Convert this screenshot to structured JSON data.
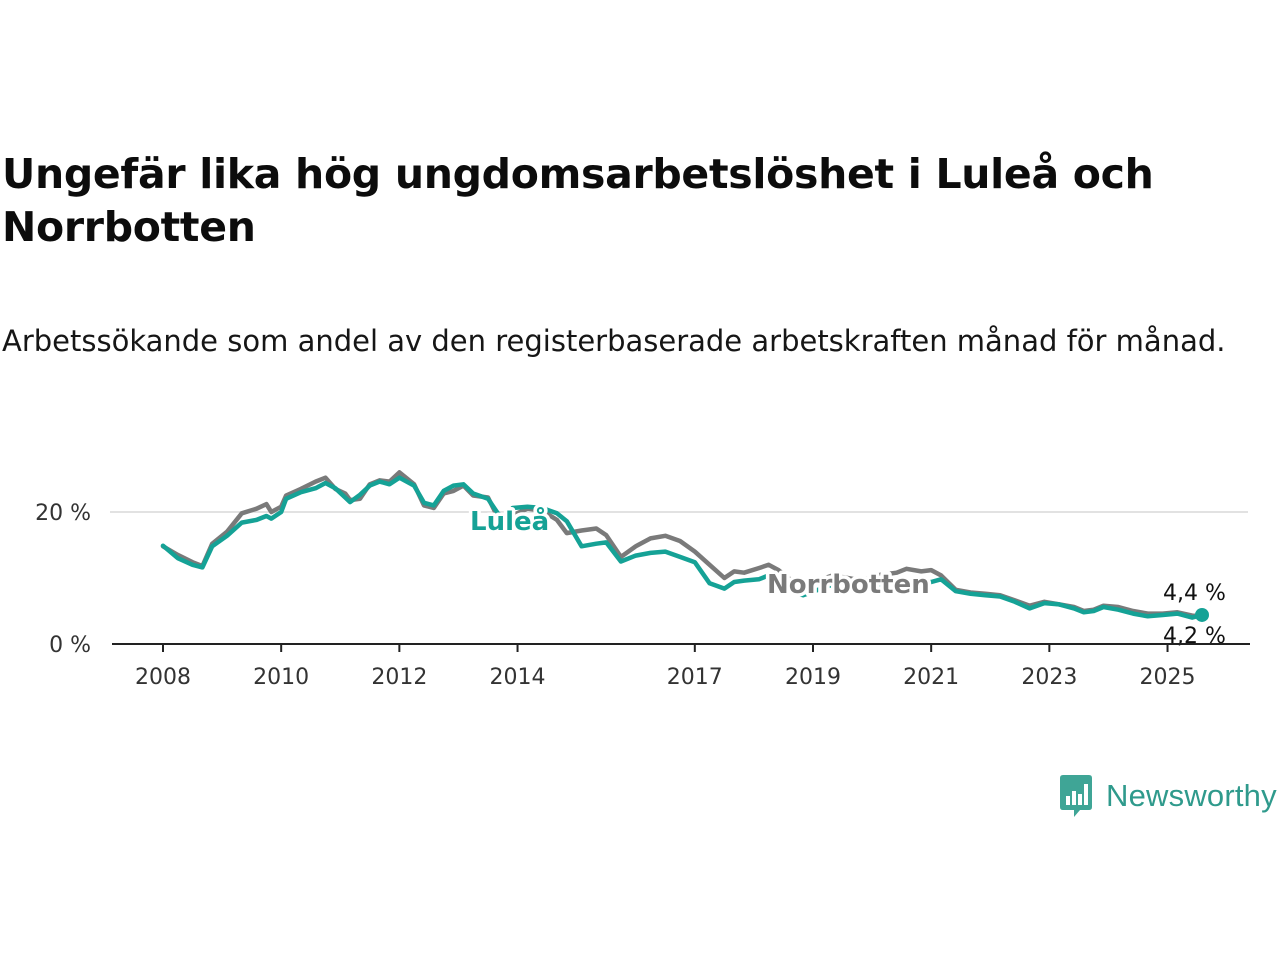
{
  "title": "Ungefär lika hög ungdomsarbetslöshet i Luleå och Norrbotten",
  "subtitle": "Arbetssökande som andel av den registerbaserade arbetskraften månad för månad.",
  "brand": {
    "name": "Newsworthy",
    "color": "#2f9a8c"
  },
  "chart_data": {
    "type": "line",
    "x_ticks": [
      "2008",
      "2010",
      "2012",
      "2014",
      "2017",
      "2019",
      "2021",
      "2023",
      "2025"
    ],
    "y_ticks": [
      "0 %",
      "20 %"
    ],
    "xlim": [
      "2008-01",
      "2025-08"
    ],
    "ylim": [
      0,
      28
    ],
    "grid": "horizontal",
    "series": [
      {
        "name": "Norrbotten",
        "color": "#7a7a7a",
        "end_label": "4,2 %",
        "points": [
          [
            "2008-01",
            14.8
          ],
          [
            "2008-04",
            13.5
          ],
          [
            "2008-07",
            12.4
          ],
          [
            "2008-09",
            11.8
          ],
          [
            "2008-11",
            15.2
          ],
          [
            "2009-02",
            17.0
          ],
          [
            "2009-05",
            19.8
          ],
          [
            "2009-08",
            20.5
          ],
          [
            "2009-10",
            21.2
          ],
          [
            "2009-11",
            20.0
          ],
          [
            "2010-01",
            20.8
          ],
          [
            "2010-02",
            22.5
          ],
          [
            "2010-05",
            23.5
          ],
          [
            "2010-08",
            24.6
          ],
          [
            "2010-10",
            25.2
          ],
          [
            "2010-12",
            23.5
          ],
          [
            "2011-02",
            22.8
          ],
          [
            "2011-03",
            21.8
          ],
          [
            "2011-05",
            22.0
          ],
          [
            "2011-07",
            24.2
          ],
          [
            "2011-09",
            24.8
          ],
          [
            "2011-11",
            24.6
          ],
          [
            "2012-01",
            26.0
          ],
          [
            "2012-04",
            24.2
          ],
          [
            "2012-06",
            21.0
          ],
          [
            "2012-08",
            20.6
          ],
          [
            "2012-10",
            22.8
          ],
          [
            "2012-12",
            23.2
          ],
          [
            "2013-02",
            24.0
          ],
          [
            "2013-04",
            22.5
          ],
          [
            "2013-07",
            22.2
          ],
          [
            "2013-09",
            19.2
          ],
          [
            "2013-11",
            17.7
          ],
          [
            "2013-12",
            19.5
          ],
          [
            "2014-03",
            20.5
          ],
          [
            "2014-06",
            20.2
          ],
          [
            "2014-09",
            18.8
          ],
          [
            "2014-11",
            16.8
          ],
          [
            "2015-02",
            17.2
          ],
          [
            "2015-05",
            17.5
          ],
          [
            "2015-07",
            16.5
          ],
          [
            "2015-10",
            13.2
          ],
          [
            "2016-01",
            14.8
          ],
          [
            "2016-04",
            16.0
          ],
          [
            "2016-07",
            16.4
          ],
          [
            "2016-10",
            15.6
          ],
          [
            "2017-01",
            14.0
          ],
          [
            "2017-04",
            12.0
          ],
          [
            "2017-07",
            10.0
          ],
          [
            "2017-09",
            11.0
          ],
          [
            "2017-11",
            10.8
          ],
          [
            "2018-02",
            11.5
          ],
          [
            "2018-04",
            12.0
          ],
          [
            "2018-06",
            11.2
          ],
          [
            "2018-09",
            9.4
          ],
          [
            "2018-11",
            9.0
          ],
          [
            "2019-02",
            9.6
          ],
          [
            "2019-05",
            10.4
          ],
          [
            "2019-08",
            10.0
          ],
          [
            "2019-11",
            9.6
          ],
          [
            "2020-02",
            10.4
          ],
          [
            "2020-06",
            10.8
          ],
          [
            "2020-08",
            11.4
          ],
          [
            "2020-11",
            11.0
          ],
          [
            "2021-01",
            11.2
          ],
          [
            "2021-03",
            10.4
          ],
          [
            "2021-06",
            8.2
          ],
          [
            "2021-09",
            7.8
          ],
          [
            "2021-12",
            7.6
          ],
          [
            "2022-03",
            7.4
          ],
          [
            "2022-06",
            6.6
          ],
          [
            "2022-09",
            5.8
          ],
          [
            "2022-12",
            6.4
          ],
          [
            "2023-03",
            6.0
          ],
          [
            "2023-06",
            5.6
          ],
          [
            "2023-08",
            5.0
          ],
          [
            "2023-10",
            5.2
          ],
          [
            "2023-12",
            5.8
          ],
          [
            "2024-03",
            5.6
          ],
          [
            "2024-06",
            5.0
          ],
          [
            "2024-09",
            4.6
          ],
          [
            "2024-12",
            4.6
          ],
          [
            "2025-03",
            4.8
          ],
          [
            "2025-06",
            4.3
          ],
          [
            "2025-08",
            4.2
          ]
        ]
      },
      {
        "name": "Luleå",
        "color": "#15a296",
        "end_label": "4,4 %",
        "points": [
          [
            "2008-01",
            14.9
          ],
          [
            "2008-04",
            13.0
          ],
          [
            "2008-07",
            12.0
          ],
          [
            "2008-09",
            11.6
          ],
          [
            "2008-11",
            14.8
          ],
          [
            "2009-02",
            16.4
          ],
          [
            "2009-05",
            18.4
          ],
          [
            "2009-08",
            18.8
          ],
          [
            "2009-10",
            19.4
          ],
          [
            "2009-11",
            19.0
          ],
          [
            "2010-01",
            20.0
          ],
          [
            "2010-02",
            22.0
          ],
          [
            "2010-05",
            23.0
          ],
          [
            "2010-08",
            23.6
          ],
          [
            "2010-10",
            24.4
          ],
          [
            "2010-12",
            23.6
          ],
          [
            "2011-02",
            22.2
          ],
          [
            "2011-03",
            21.5
          ],
          [
            "2011-05",
            22.6
          ],
          [
            "2011-07",
            24.0
          ],
          [
            "2011-09",
            24.6
          ],
          [
            "2011-11",
            24.2
          ],
          [
            "2012-01",
            25.2
          ],
          [
            "2012-04",
            24.0
          ],
          [
            "2012-06",
            21.4
          ],
          [
            "2012-08",
            21.0
          ],
          [
            "2012-10",
            23.2
          ],
          [
            "2012-12",
            24.0
          ],
          [
            "2013-02",
            24.2
          ],
          [
            "2013-04",
            22.8
          ],
          [
            "2013-07",
            22.0
          ],
          [
            "2013-09",
            19.8
          ],
          [
            "2013-11",
            18.8
          ],
          [
            "2013-12",
            20.6
          ],
          [
            "2014-03",
            20.8
          ],
          [
            "2014-06",
            20.6
          ],
          [
            "2014-09",
            19.8
          ],
          [
            "2014-11",
            18.6
          ],
          [
            "2015-02",
            14.8
          ],
          [
            "2015-05",
            15.2
          ],
          [
            "2015-07",
            15.4
          ],
          [
            "2015-10",
            12.5
          ],
          [
            "2016-01",
            13.4
          ],
          [
            "2016-04",
            13.8
          ],
          [
            "2016-07",
            14.0
          ],
          [
            "2016-10",
            13.2
          ],
          [
            "2017-01",
            12.4
          ],
          [
            "2017-04",
            9.2
          ],
          [
            "2017-07",
            8.4
          ],
          [
            "2017-09",
            9.4
          ],
          [
            "2017-11",
            9.6
          ],
          [
            "2018-02",
            9.8
          ],
          [
            "2018-04",
            10.4
          ],
          [
            "2018-06",
            9.6
          ],
          [
            "2018-09",
            7.8
          ],
          [
            "2018-11",
            7.4
          ],
          [
            "2019-02",
            8.2
          ],
          [
            "2019-05",
            9.0
          ],
          [
            "2019-08",
            8.6
          ],
          [
            "2019-11",
            8.2
          ],
          [
            "2020-02",
            8.6
          ],
          [
            "2020-06",
            9.0
          ],
          [
            "2020-08",
            9.4
          ],
          [
            "2020-11",
            9.2
          ],
          [
            "2021-01",
            9.4
          ],
          [
            "2021-03",
            9.8
          ],
          [
            "2021-06",
            8.0
          ],
          [
            "2021-09",
            7.6
          ],
          [
            "2021-12",
            7.4
          ],
          [
            "2022-03",
            7.2
          ],
          [
            "2022-06",
            6.4
          ],
          [
            "2022-09",
            5.4
          ],
          [
            "2022-12",
            6.2
          ],
          [
            "2023-03",
            6.0
          ],
          [
            "2023-06",
            5.4
          ],
          [
            "2023-08",
            4.8
          ],
          [
            "2023-10",
            5.0
          ],
          [
            "2023-12",
            5.6
          ],
          [
            "2024-03",
            5.2
          ],
          [
            "2024-06",
            4.6
          ],
          [
            "2024-09",
            4.2
          ],
          [
            "2024-12",
            4.4
          ],
          [
            "2025-03",
            4.6
          ],
          [
            "2025-06",
            4.0
          ],
          [
            "2025-08",
            4.4
          ]
        ]
      }
    ]
  }
}
